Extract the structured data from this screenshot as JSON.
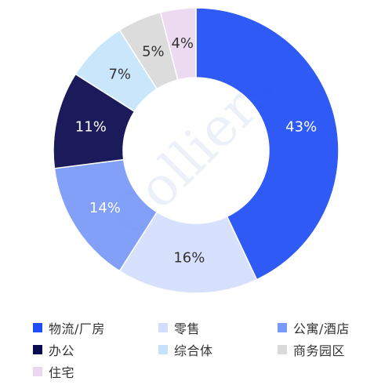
{
  "chart_data": {
    "type": "pie",
    "donut": true,
    "categories": [
      "物流/厂房",
      "零售",
      "公寓/酒店",
      "办公",
      "综合体",
      "商务园区",
      "住宅"
    ],
    "values": [
      43,
      16,
      14,
      11,
      7,
      5,
      4
    ],
    "labels": [
      "43%",
      "16%",
      "14%",
      "11%",
      "7%",
      "5%",
      "4%"
    ],
    "colors": [
      "#1f4ef5",
      "#d4defc",
      "#7899f8",
      "#0a0a50",
      "#c5e4fb",
      "#d9d9d9",
      "#ead7ef"
    ],
    "label_colors": [
      "#ffffff",
      "#333333",
      "#ffffff",
      "#ffffff",
      "#333333",
      "#333333",
      "#333333"
    ],
    "legend_position": "bottom",
    "watermark": "Colliers"
  }
}
